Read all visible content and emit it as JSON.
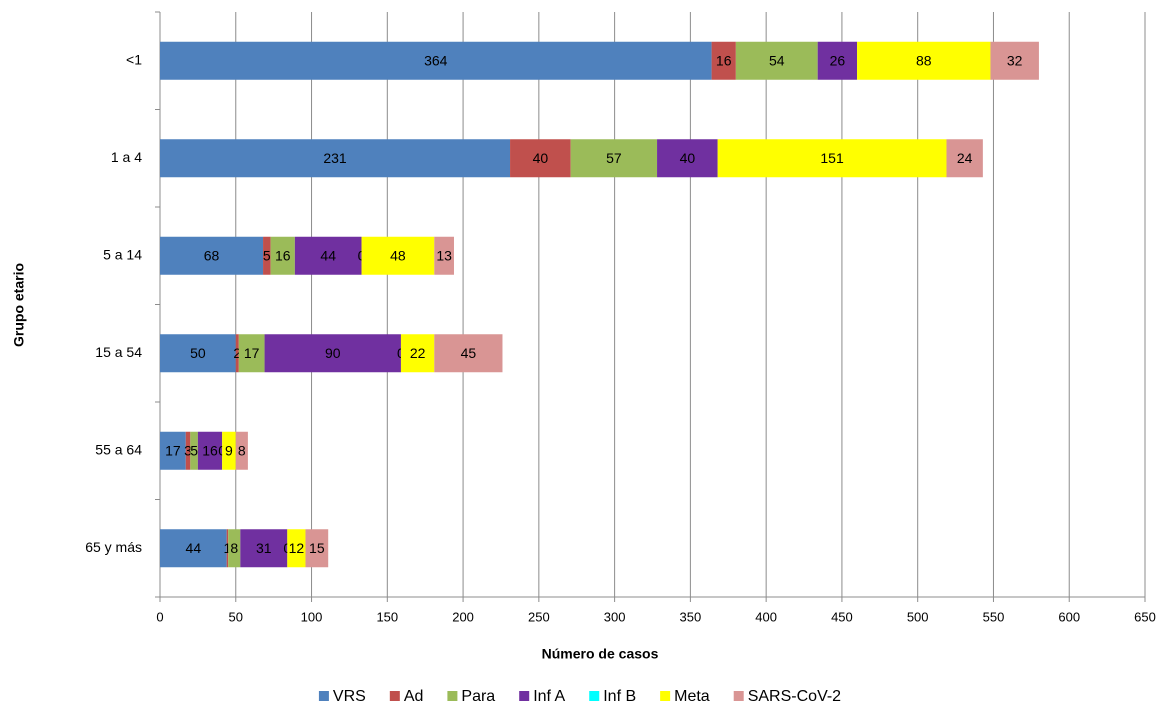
{
  "chart_data": {
    "type": "bar",
    "orientation": "horizontal",
    "stacked": true,
    "x_label": "Número de casos",
    "y_label": "Grupo etario",
    "categories": [
      "<1",
      "1 a 4",
      "5 a 14",
      "15 a 54",
      "55 a 64",
      "65 y más"
    ],
    "series": [
      {
        "name": "VRS",
        "color": "#4f81bd",
        "values": [
          364,
          231,
          68,
          50,
          17,
          44
        ]
      },
      {
        "name": "Ad",
        "color": "#c0504d",
        "values": [
          16,
          40,
          5,
          2,
          3,
          1
        ]
      },
      {
        "name": "Para",
        "color": "#9bbb59",
        "values": [
          54,
          57,
          16,
          17,
          5,
          8
        ]
      },
      {
        "name": "Inf A",
        "color": "#7030a0",
        "values": [
          26,
          40,
          44,
          90,
          16,
          31
        ]
      },
      {
        "name": "Inf B",
        "color": "#00ffff",
        "values": [
          null,
          null,
          0,
          0,
          0,
          0
        ]
      },
      {
        "name": "Meta",
        "color": "#ffff00",
        "values": [
          88,
          151,
          48,
          22,
          9,
          12
        ]
      },
      {
        "name": "SARS-CoV-2",
        "color": "#d99594",
        "values": [
          32,
          24,
          13,
          45,
          8,
          15
        ]
      }
    ],
    "xlim": [
      0,
      650
    ],
    "xticks": [
      0,
      50,
      100,
      150,
      200,
      250,
      300,
      350,
      400,
      450,
      500,
      550,
      600,
      650
    ],
    "grid": true,
    "legend": "bottom"
  }
}
